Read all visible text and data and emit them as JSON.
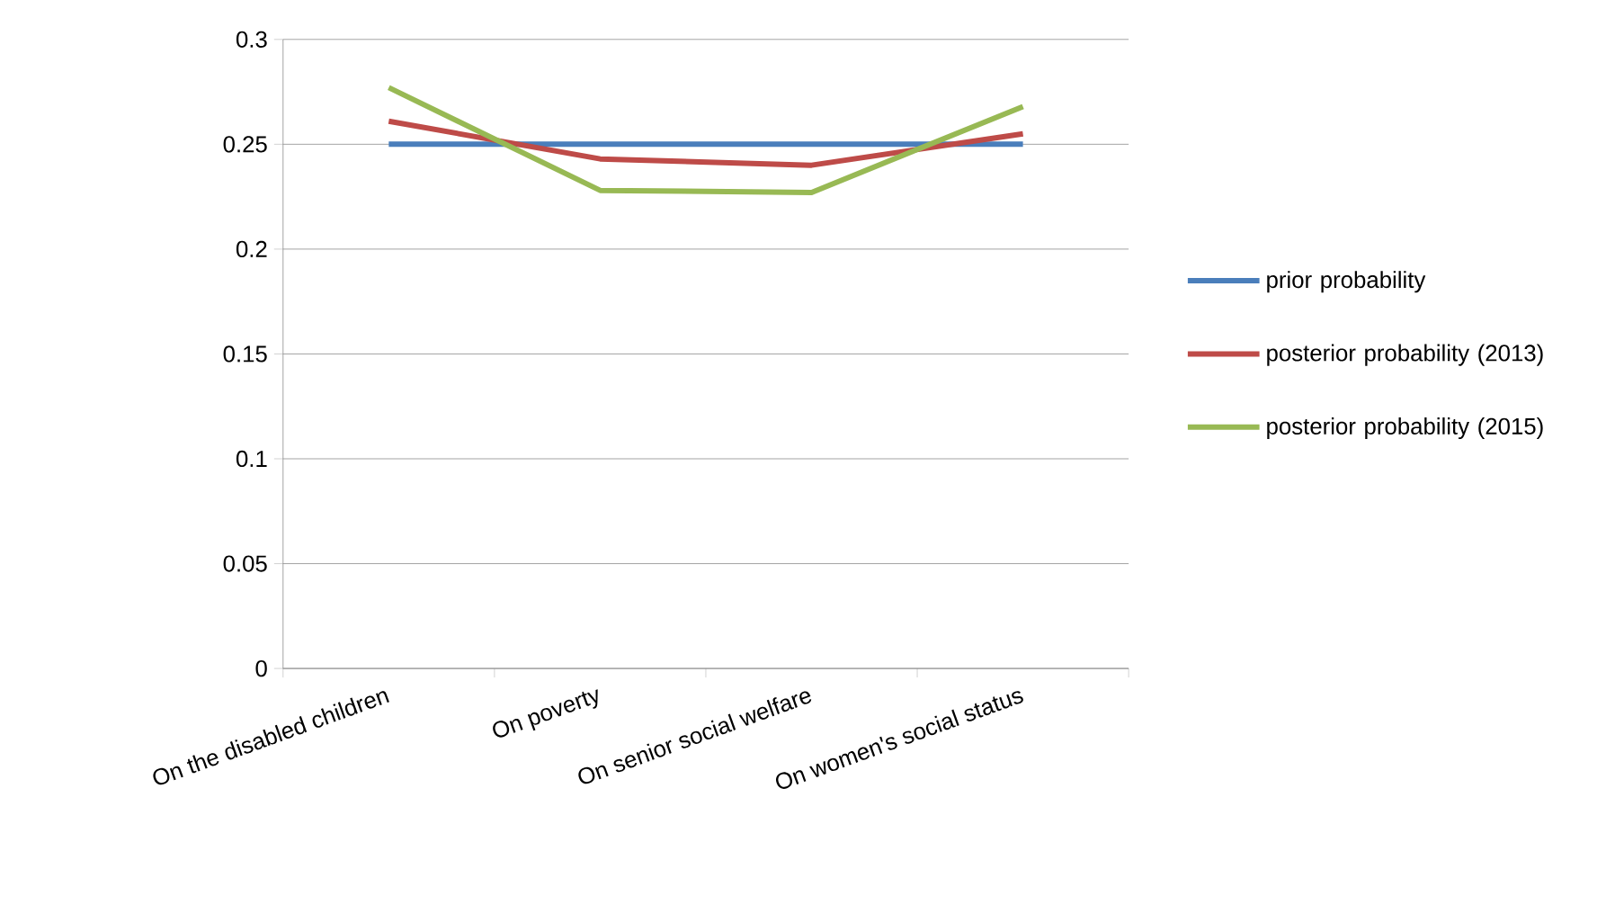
{
  "chart_data": {
    "type": "line",
    "categories": [
      "On the disabled children",
      "On poverty",
      "On senior social welfare",
      "On women's social status"
    ],
    "series": [
      {
        "name": "prior probability",
        "color": "#4a7ebb",
        "values": [
          0.25,
          0.25,
          0.25,
          0.25
        ]
      },
      {
        "name": "posterior probability (2013)",
        "color": "#be4b48",
        "values": [
          0.261,
          0.243,
          0.24,
          0.255
        ]
      },
      {
        "name": "posterior probability (2015)",
        "color": "#98b954",
        "values": [
          0.277,
          0.228,
          0.227,
          0.268
        ]
      }
    ],
    "ylim": [
      0,
      0.3
    ],
    "yticks": [
      0,
      0.05,
      0.1,
      0.15,
      0.2,
      0.25,
      0.3
    ],
    "grid": "y",
    "legend": "right",
    "marker": "none",
    "line_style": "solid"
  }
}
